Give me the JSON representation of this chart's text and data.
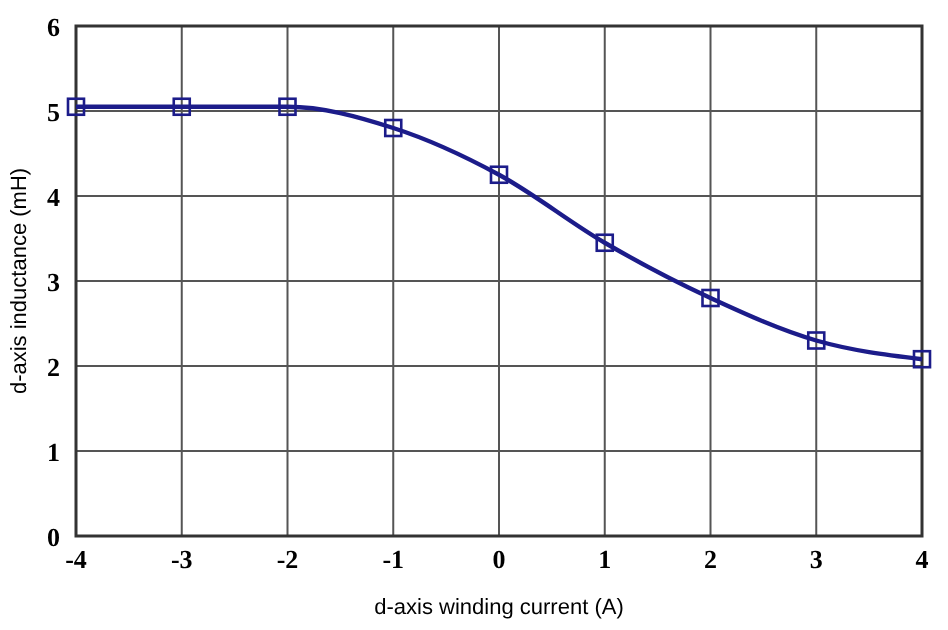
{
  "chart_data": {
    "type": "line",
    "xlabel": "d-axis winding current (A)",
    "ylabel": "d-axis inductance (mH)",
    "x": [
      -4,
      -3,
      -2,
      -1,
      0,
      1,
      2,
      3,
      4
    ],
    "series": [
      {
        "color": "#1c1c8a",
        "values": [
          5.05,
          5.05,
          5.05,
          4.8,
          4.25,
          3.45,
          2.8,
          2.3,
          2.08
        ]
      }
    ],
    "xlim": [
      -4,
      4
    ],
    "xticks": [
      -4,
      -3,
      -2,
      -1,
      0,
      1,
      2,
      3,
      4
    ],
    "ylim": [
      0,
      6
    ],
    "yticks": [
      0,
      1,
      2,
      3,
      4,
      5,
      6
    ],
    "grid": true,
    "marker": "square",
    "line_style": "solid"
  }
}
